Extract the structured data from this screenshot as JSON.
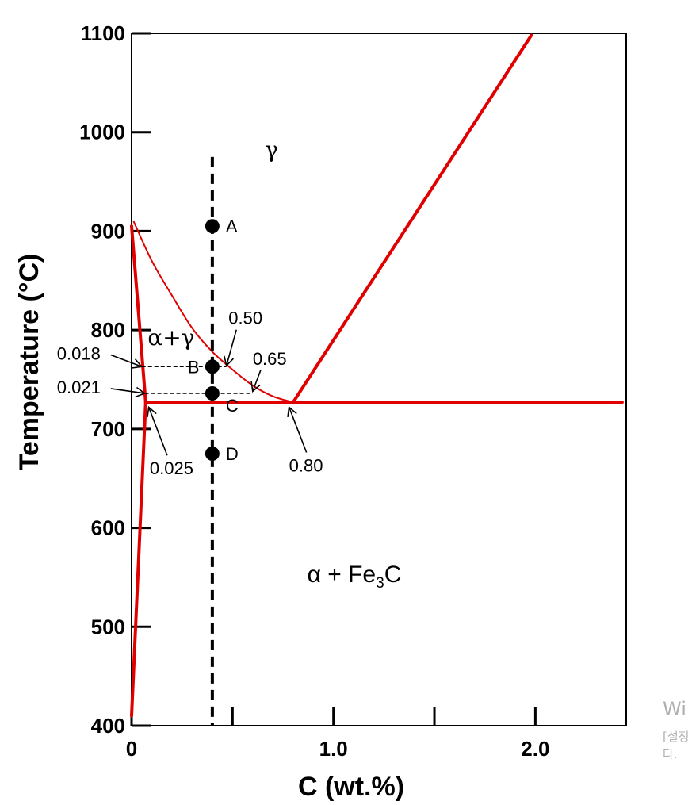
{
  "chart_data": {
    "type": "phase-diagram",
    "xlabel": "C (wt.%)",
    "ylabel": "Temperature (°C)",
    "xlim": [
      0,
      2.45
    ],
    "ylim": [
      400,
      1100
    ],
    "x_ticks": [
      {
        "value": 0,
        "label": "0"
      },
      {
        "value": 0.5,
        "label": ""
      },
      {
        "value": 1.0,
        "label": "1.0"
      },
      {
        "value": 1.5,
        "label": ""
      },
      {
        "value": 2.0,
        "label": "2.0"
      }
    ],
    "y_ticks": [
      {
        "value": 400,
        "label": "400"
      },
      {
        "value": 500,
        "label": "500"
      },
      {
        "value": 600,
        "label": "600"
      },
      {
        "value": 700,
        "label": "700"
      },
      {
        "value": 800,
        "label": "800"
      },
      {
        "value": 900,
        "label": "900"
      },
      {
        "value": 1000,
        "label": "1000"
      },
      {
        "value": 1100,
        "label": "1100"
      }
    ],
    "line_color": "#e00000",
    "boundaries": [
      {
        "id": "acm",
        "points": [
          [
            0.8,
            727
          ],
          [
            1.98,
            1098
          ]
        ]
      },
      {
        "id": "eutectoid",
        "points": [
          [
            0.07,
            727
          ],
          [
            2.43,
            727
          ]
        ]
      },
      {
        "id": "alpha-solvus-upper",
        "points": [
          [
            0.0,
            905
          ],
          [
            0.07,
            727
          ]
        ]
      },
      {
        "id": "alpha-solvus-lower",
        "points": [
          [
            0.0,
            410
          ],
          [
            0.07,
            727
          ]
        ]
      }
    ],
    "a3_curve": [
      [
        0.01,
        910
      ],
      [
        0.1,
        870
      ],
      [
        0.2,
        835
      ],
      [
        0.3,
        802
      ],
      [
        0.4,
        778
      ],
      [
        0.5,
        760
      ],
      [
        0.6,
        744
      ],
      [
        0.7,
        733
      ],
      [
        0.8,
        727
      ]
    ],
    "composition_line": {
      "x": 0.4,
      "ymin": 400,
      "ymax": 975
    },
    "points": [
      {
        "label": "A",
        "x": 0.4,
        "y": 905
      },
      {
        "label": "B",
        "x": 0.4,
        "y": 763
      },
      {
        "label": "C",
        "x": 0.4,
        "y": 736
      },
      {
        "label": "D",
        "x": 0.4,
        "y": 675
      }
    ],
    "tie_lines": [
      {
        "y": 763,
        "x1": 0.05,
        "x2": 0.47
      },
      {
        "y": 736,
        "x1": 0.065,
        "x2": 0.6
      }
    ],
    "annotations": [
      {
        "text": "0.50",
        "text_x": 0.48,
        "text_y": 806,
        "target_x": 0.47,
        "target_y": 764
      },
      {
        "text": "0.65",
        "text_x": 0.6,
        "text_y": 765,
        "target_x": 0.6,
        "target_y": 738
      },
      {
        "text": "0.018",
        "text_x": -0.37,
        "text_y": 770,
        "target_x": 0.05,
        "target_y": 763
      },
      {
        "text": "0.021",
        "text_x": -0.37,
        "text_y": 736,
        "target_x": 0.065,
        "target_y": 736
      },
      {
        "text": "0.025",
        "text_x": 0.09,
        "text_y": 654,
        "target_x": 0.085,
        "target_y": 722
      },
      {
        "text": "0.80",
        "text_x": 0.78,
        "text_y": 657,
        "target_x": 0.78,
        "target_y": 722
      }
    ],
    "phase_labels": [
      {
        "id": "gamma",
        "text": "γ",
        "x": 0.66,
        "y": 975
      },
      {
        "id": "alpha-gamma",
        "text": "α+γ",
        "x": 0.08,
        "y": 785
      },
      {
        "id": "alpha-fe3c",
        "text": "α + Fe3C",
        "x": 0.87,
        "y": 545
      }
    ]
  },
  "watermark": {
    "line1": "Wi",
    "line2": "[설정",
    "line3": "다."
  }
}
